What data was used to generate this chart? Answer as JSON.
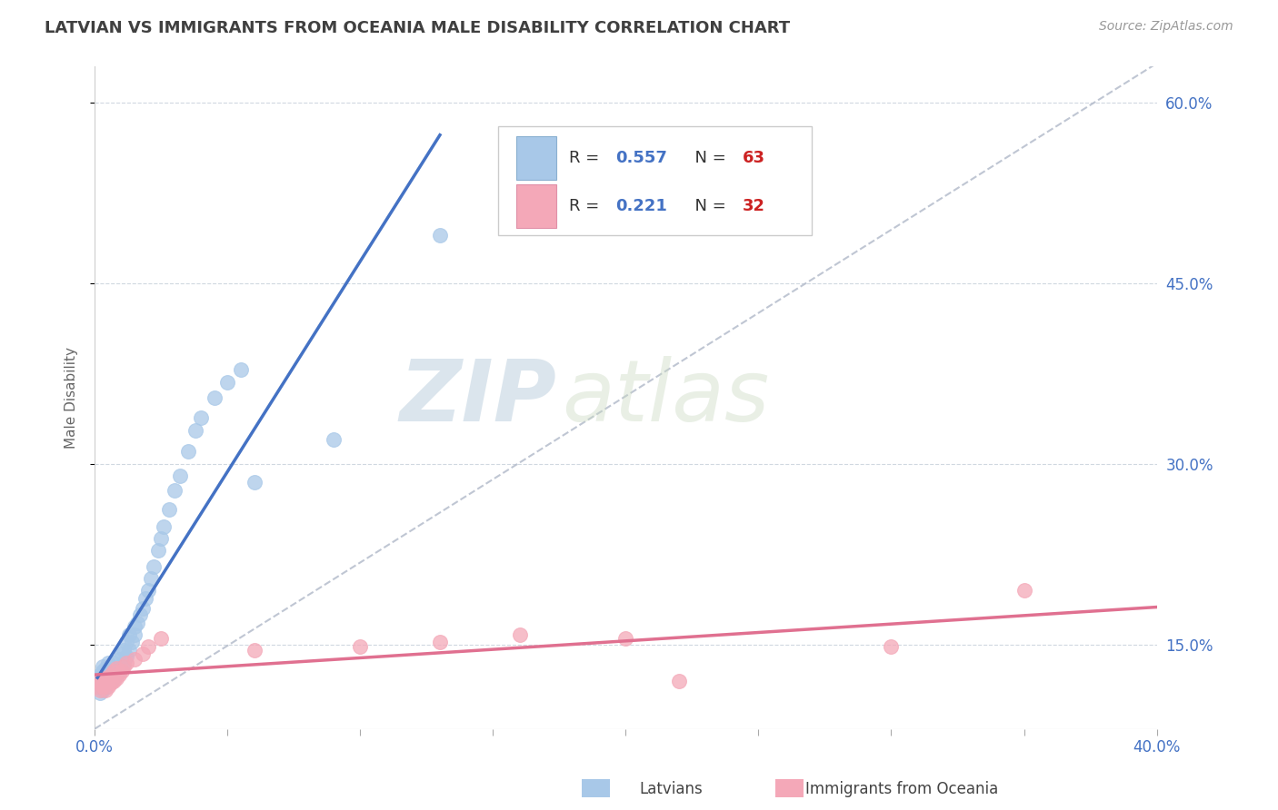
{
  "title": "LATVIAN VS IMMIGRANTS FROM OCEANIA MALE DISABILITY CORRELATION CHART",
  "source": "Source: ZipAtlas.com",
  "ylabel": "Male Disability",
  "xlim": [
    0.0,
    0.4
  ],
  "ylim": [
    0.08,
    0.63
  ],
  "xtick_positions": [
    0.0,
    0.05,
    0.1,
    0.15,
    0.2,
    0.25,
    0.3,
    0.35,
    0.4
  ],
  "xtick_labels": [
    "0.0%",
    "",
    "",
    "",
    "",
    "",
    "",
    "",
    "40.0%"
  ],
  "ytick_positions": [
    0.15,
    0.3,
    0.45,
    0.6
  ],
  "ytick_labels": [
    "15.0%",
    "30.0%",
    "45.0%",
    "60.0%"
  ],
  "legend_R1": "0.557",
  "legend_N1": "63",
  "legend_R2": "0.221",
  "legend_N2": "32",
  "color_latvian": "#a8c8e8",
  "color_oceania": "#f4a8b8",
  "color_line_latvian": "#4472c4",
  "color_line_oceania": "#e07090",
  "color_ref_line": "#b0b8c8",
  "color_title": "#404040",
  "color_legend_R": "#4472c4",
  "color_legend_N": "#cc2222",
  "background_color": "#ffffff",
  "grid_color": "#d0d8e0",
  "watermark_zip": "ZIP",
  "watermark_atlas": "atlas",
  "latvian_x": [
    0.001,
    0.001,
    0.001,
    0.002,
    0.002,
    0.002,
    0.002,
    0.003,
    0.003,
    0.003,
    0.003,
    0.003,
    0.004,
    0.004,
    0.004,
    0.004,
    0.005,
    0.005,
    0.005,
    0.005,
    0.006,
    0.006,
    0.006,
    0.007,
    0.007,
    0.007,
    0.008,
    0.008,
    0.009,
    0.009,
    0.01,
    0.01,
    0.011,
    0.011,
    0.012,
    0.012,
    0.013,
    0.013,
    0.014,
    0.015,
    0.015,
    0.016,
    0.017,
    0.018,
    0.019,
    0.02,
    0.021,
    0.022,
    0.024,
    0.025,
    0.026,
    0.028,
    0.03,
    0.032,
    0.035,
    0.038,
    0.04,
    0.045,
    0.05,
    0.055,
    0.06,
    0.09,
    0.13
  ],
  "latvian_y": [
    0.115,
    0.118,
    0.122,
    0.11,
    0.115,
    0.12,
    0.125,
    0.112,
    0.118,
    0.122,
    0.128,
    0.132,
    0.115,
    0.12,
    0.125,
    0.13,
    0.118,
    0.122,
    0.128,
    0.135,
    0.12,
    0.125,
    0.132,
    0.122,
    0.128,
    0.135,
    0.125,
    0.13,
    0.128,
    0.138,
    0.132,
    0.142,
    0.135,
    0.145,
    0.14,
    0.152,
    0.145,
    0.158,
    0.152,
    0.158,
    0.165,
    0.168,
    0.175,
    0.18,
    0.188,
    0.195,
    0.205,
    0.215,
    0.228,
    0.238,
    0.248,
    0.262,
    0.278,
    0.29,
    0.31,
    0.328,
    0.338,
    0.355,
    0.368,
    0.378,
    0.285,
    0.32,
    0.49
  ],
  "oceania_x": [
    0.001,
    0.001,
    0.002,
    0.002,
    0.003,
    0.003,
    0.004,
    0.004,
    0.005,
    0.005,
    0.006,
    0.006,
    0.007,
    0.007,
    0.008,
    0.008,
    0.009,
    0.01,
    0.011,
    0.012,
    0.015,
    0.018,
    0.02,
    0.025,
    0.06,
    0.1,
    0.13,
    0.16,
    0.2,
    0.22,
    0.3,
    0.35
  ],
  "oceania_y": [
    0.115,
    0.12,
    0.112,
    0.118,
    0.115,
    0.122,
    0.112,
    0.118,
    0.115,
    0.122,
    0.118,
    0.125,
    0.12,
    0.128,
    0.122,
    0.13,
    0.125,
    0.128,
    0.132,
    0.135,
    0.138,
    0.142,
    0.148,
    0.155,
    0.145,
    0.148,
    0.152,
    0.158,
    0.155,
    0.12,
    0.148,
    0.195
  ]
}
